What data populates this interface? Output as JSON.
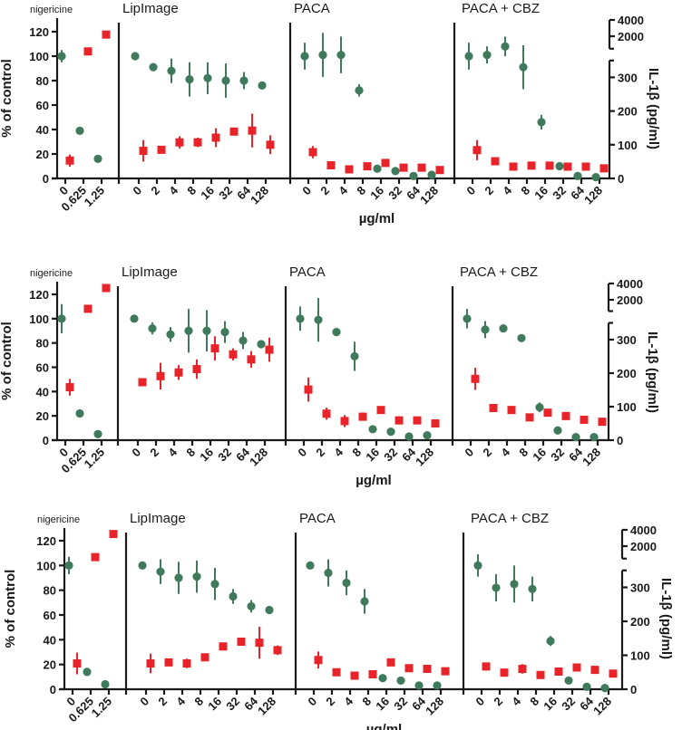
{
  "colors": {
    "viability": "#3e7a5b",
    "il1b": "#e8232a",
    "axis": "#1a1a1a"
  },
  "chart_data": [
    {
      "type": "scatter",
      "ylabel": "% of control",
      "y2label": "IL-1β (pg/ml)",
      "xlabel": "µg/ml",
      "yticks": [
        "0",
        "20",
        "40",
        "60",
        "80",
        "100",
        "120"
      ],
      "y2ticks": [
        "0",
        "100",
        "200",
        "300"
      ],
      "y2break_ticks": [
        "2000",
        "4000"
      ],
      "ylim": [
        0,
        130
      ],
      "panels": [
        {
          "title": "nigericine",
          "x": [
            "0",
            "0.625",
            "1.25"
          ],
          "viability": {
            "values": [
              100,
              39,
              16
            ],
            "err": [
              5,
              0,
              0
            ]
          },
          "il1b": {
            "values": [
              53,
              377,
              427
            ],
            "err": [
              18,
              0,
              0
            ]
          }
        },
        {
          "title": "LipImage",
          "x": [
            "0",
            "2",
            "4",
            "8",
            "16",
            "32",
            "64",
            "128"
          ],
          "viability": {
            "values": [
              100,
              91,
              88,
              81,
              82,
              80,
              80,
              76
            ],
            "err": [
              1,
              3,
              10,
              14,
              13,
              14,
              7,
              3
            ]
          },
          "il1b": {
            "values": [
              82,
              85,
              107,
              107,
              121,
              139,
              142,
              100
            ],
            "err": [
              32,
              11,
              18,
              14,
              28,
              11,
              50,
              28
            ]
          }
        },
        {
          "title": "PACA",
          "x": [
            "0",
            "2",
            "4",
            "8",
            "16",
            "32",
            "64",
            "128"
          ],
          "viability": {
            "values": [
              100,
              101,
              101,
              72,
              8,
              6,
              2,
              3
            ],
            "err": [
              11,
              18,
              15,
              5,
              0,
              0,
              0,
              0
            ]
          },
          "il1b": {
            "values": [
              78,
              39,
              27,
              36,
              46,
              32,
              32,
              25
            ],
            "err": [
              18,
              0,
              0,
              10,
              0,
              0,
              0,
              0
            ]
          }
        },
        {
          "title": "PACA + CBZ",
          "x": [
            "0",
            "2",
            "4",
            "8",
            "16",
            "32",
            "64",
            "128"
          ],
          "viability": {
            "values": [
              100,
              101,
              108,
              91,
              46,
              10,
              2,
              1
            ],
            "err": [
              11,
              7,
              8,
              18,
              6,
              0,
              0,
              0
            ]
          },
          "il1b": {
            "values": [
              84,
              51,
              35,
              38,
              38,
              35,
              35,
              30
            ],
            "err": [
              30,
              12,
              0,
              10,
              0,
              0,
              0,
              0
            ]
          }
        }
      ]
    },
    {
      "type": "scatter",
      "ylabel": "% of control",
      "y2label": "IL-1β (pg/ml)",
      "xlabel": "µg/ml",
      "yticks": [
        "0",
        "20",
        "40",
        "60",
        "80",
        "100",
        "120"
      ],
      "y2ticks": [
        "0",
        "100",
        "200",
        "300"
      ],
      "y2break_ticks": [
        "2000",
        "4000"
      ],
      "ylim": [
        0,
        130
      ],
      "panels": [
        {
          "title": "nigericine",
          "x": [
            "0",
            "0.625",
            "1.25"
          ],
          "viability": {
            "values": [
              100,
              22,
              5
            ],
            "err": [
              12,
              0,
              0
            ]
          },
          "il1b": {
            "values": [
              158,
              392,
              454
            ],
            "err": [
              25,
              0,
              0
            ]
          }
        },
        {
          "title": "LipImage",
          "x": [
            "0",
            "2",
            "4",
            "8",
            "16",
            "32",
            "64",
            "128"
          ],
          "viability": {
            "values": [
              100,
              92,
              87,
              90,
              90,
              89,
              82,
              79
            ],
            "err": [
              1,
              5,
              6,
              18,
              17,
              9,
              7,
              1
            ]
          },
          "il1b": {
            "values": [
              173,
              191,
              202,
              212,
              274,
              256,
              241,
              270
            ],
            "err": [
              0,
              40,
              22,
              29,
              36,
              18,
              25,
              36
            ]
          }
        },
        {
          "title": "PACA",
          "x": [
            "0",
            "2",
            "4",
            "8",
            "16",
            "32",
            "64",
            "128"
          ],
          "viability": {
            "values": [
              100,
              99,
              89,
              69,
              9,
              7,
              3,
              4
            ],
            "err": [
              10,
              18,
              3,
              12,
              0,
              0,
              0,
              0
            ]
          },
          "il1b": {
            "values": [
              151,
              79,
              57,
              70,
              90,
              59,
              59,
              50
            ],
            "err": [
              36,
              18,
              18,
              12,
              0,
              12,
              0,
              0
            ]
          }
        },
        {
          "title": "PACA + CBZ",
          "x": [
            "0",
            "2",
            "4",
            "8",
            "16",
            "32",
            "64",
            "128"
          ],
          "viability": {
            "values": [
              100,
              91,
              92,
              84,
              27,
              8,
              2.5,
              2.5
            ],
            "err": [
              8,
              7,
              3,
              3,
              4,
              0,
              0,
              0
            ]
          },
          "il1b": {
            "values": [
              183,
              96,
              90,
              68,
              82,
              72,
              61,
              55
            ],
            "err": [
              33,
              10,
              12,
              0,
              10,
              12,
              0,
              0
            ]
          }
        }
      ]
    },
    {
      "type": "scatter",
      "ylabel": "% of control",
      "y2label": "IL-1β (pg/ml)",
      "xlabel": "µg/ml",
      "yticks": [
        "0",
        "20",
        "40",
        "60",
        "80",
        "100",
        "120"
      ],
      "y2ticks": [
        "0",
        "100",
        "200",
        "300"
      ],
      "y2break_ticks": [
        "2000",
        "4000"
      ],
      "ylim": [
        0,
        130
      ],
      "panels": [
        {
          "title": "nigericine",
          "x": [
            "0",
            "0.625",
            "1.25"
          ],
          "viability": {
            "values": [
              100,
              14,
              4
            ],
            "err": [
              7,
              0,
              0
            ]
          },
          "il1b": {
            "values": [
              76,
              389,
              457
            ],
            "err": [
              32,
              0,
              0
            ]
          }
        },
        {
          "title": "LipImage",
          "x": [
            "0",
            "2",
            "4",
            "8",
            "16",
            "32",
            "64",
            "128"
          ],
          "viability": {
            "values": [
              100,
              95,
              90,
              91,
              85,
              75,
              67,
              64
            ],
            "err": [
              2,
              10,
              13,
              13,
              13,
              6,
              5,
              1
            ]
          },
          "il1b": {
            "values": [
              76,
              79,
              76,
              94,
              126,
              140,
              137,
              115
            ],
            "err": [
              29,
              11,
              14,
              11,
              11,
              11,
              47,
              14
            ]
          }
        },
        {
          "title": "PACA",
          "x": [
            "0",
            "2",
            "4",
            "8",
            "16",
            "32",
            "64",
            "128"
          ],
          "viability": {
            "values": [
              100,
              94,
              86,
              71,
              9,
              7,
              3,
              3
            ],
            "err": [
              2,
              11,
              10,
              10,
              0,
              0,
              0,
              0
            ]
          },
          "il1b": {
            "values": [
              86,
              50,
              40,
              44,
              79,
              62,
              60,
              53
            ],
            "err": [
              25,
              0,
              0,
              0,
              8,
              0,
              0,
              0
            ]
          }
        },
        {
          "title": "PACA + CBZ",
          "x": [
            "0",
            "2",
            "4",
            "8",
            "16",
            "32",
            "64",
            "128"
          ],
          "viability": {
            "values": [
              100,
              82,
              85,
              81,
              39,
              7,
              2,
              1
            ],
            "err": [
              9,
              11,
              15,
              10,
              4,
              0,
              0,
              0
            ]
          },
          "il1b": {
            "values": [
              67,
              49,
              60,
              42,
              52,
              64,
              57,
              46
            ],
            "err": [
              10,
              12,
              14,
              0,
              8,
              0,
              0,
              0
            ]
          }
        }
      ]
    }
  ]
}
